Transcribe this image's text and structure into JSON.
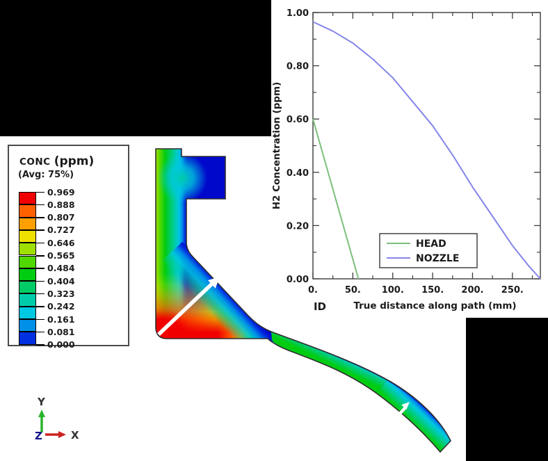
{
  "contour_legend": {
    "title_var": "CONC",
    "title_unit": "(ppm)",
    "subtitle": "(Avg: 75%)",
    "levels": [
      "0.969",
      "0.888",
      "0.807",
      "0.727",
      "0.646",
      "0.565",
      "0.484",
      "0.404",
      "0.323",
      "0.242",
      "0.161",
      "0.081",
      "0.000"
    ],
    "palette": [
      "#f00000",
      "#ff6000",
      "#ffa000",
      "#f0e000",
      "#a0e000",
      "#50d800",
      "#00cc11",
      "#00cc66",
      "#00ccaa",
      "#00c8e0",
      "#0090e8",
      "#0030e0"
    ],
    "deep_blue": "#0008cc",
    "border_color": "#4a4a4a"
  },
  "contour": {
    "outline_color": "#2e2e2e",
    "arrow_color": "#ffffff"
  },
  "triad": {
    "x_label": "X",
    "y_label": "Y",
    "z_label": "Z",
    "x_color": "#cc2121",
    "y_color": "#2ab32a",
    "z_color": "#15158c",
    "label_color": "#333333"
  },
  "chart_data": {
    "type": "line",
    "title": "",
    "xlabel": "True distance along path (mm)",
    "ylabel": "H2 Concentration (ppm)",
    "xlim": [
      0,
      285
    ],
    "ylim": [
      0,
      1.0
    ],
    "x_ticks": [
      "0.",
      "50.",
      "100.",
      "150.",
      "200.",
      "250."
    ],
    "y_ticks": [
      "0.00",
      "0.20",
      "0.40",
      "0.60",
      "0.80",
      "1.00"
    ],
    "x_minor_step": 25,
    "y_minor_step": 0.1,
    "grid": false,
    "legend_position": "lower-center",
    "frame_color": "#3c3c3c",
    "text_color": "#1b1b1b",
    "annotation": "ID",
    "series": [
      {
        "name": "HEAD",
        "color": "#7cbf7c",
        "x": [
          0,
          57
        ],
        "y": [
          0.6,
          0.0
        ]
      },
      {
        "name": "NOZZLE",
        "color": "#8585ea",
        "x": [
          0,
          25,
          50,
          75,
          100,
          125,
          150,
          175,
          200,
          225,
          250,
          270,
          285
        ],
        "y": [
          0.965,
          0.93,
          0.885,
          0.825,
          0.755,
          0.665,
          0.575,
          0.465,
          0.345,
          0.235,
          0.125,
          0.05,
          0.0
        ]
      }
    ]
  }
}
